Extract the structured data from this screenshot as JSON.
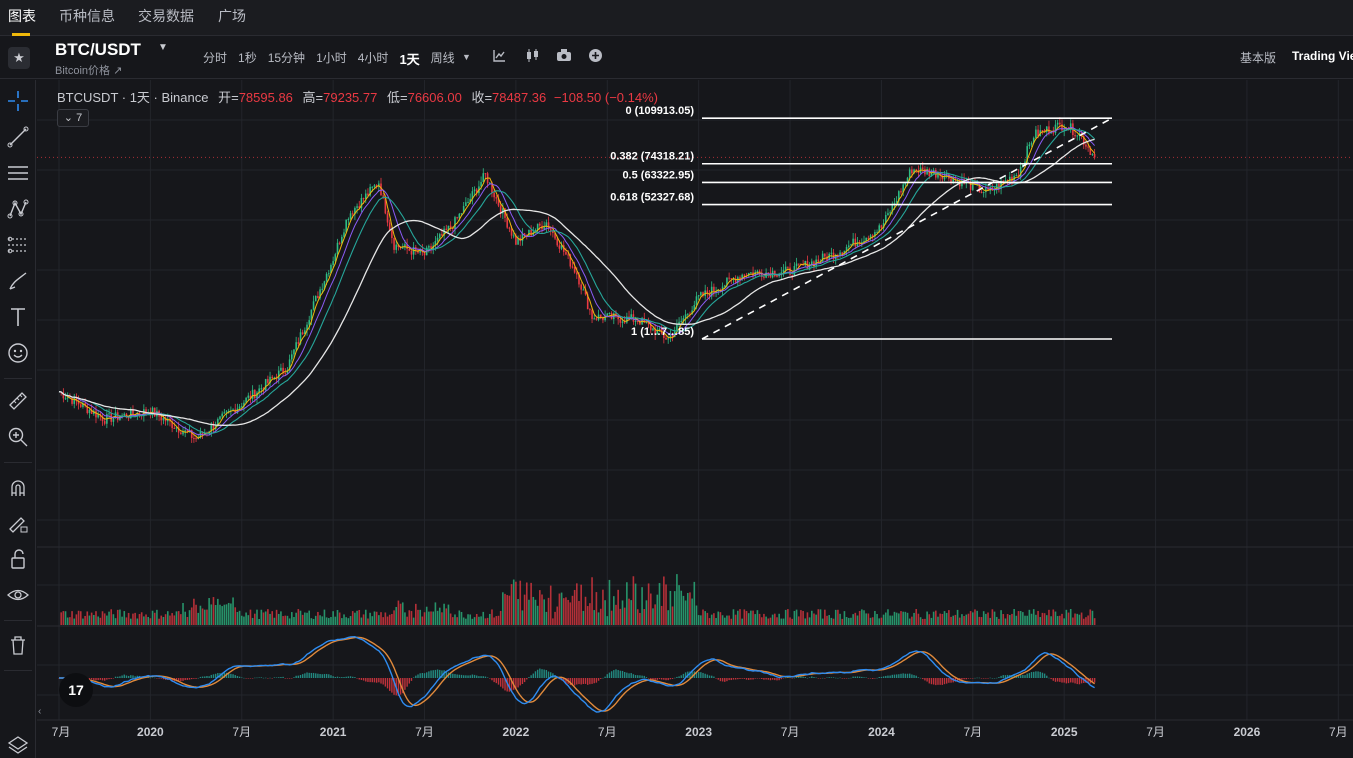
{
  "top_tabs": [
    "图表",
    "币种信息",
    "交易数据",
    "广场"
  ],
  "header": {
    "symbol": "BTC/USDT",
    "subname": "Bitcoin价格 ↗",
    "intervals": [
      "分时",
      "1秒",
      "15分钟",
      "1小时",
      "4小时",
      "1天",
      "周线"
    ],
    "active_interval": "1天",
    "view_basic": "基本版",
    "view_tv": "Trading View"
  },
  "legend": {
    "symbol_line": "BTCUSDT · 1天 · Binance",
    "open_label": "开=",
    "open": "78595.86",
    "high_label": "高=",
    "high": "79235.77",
    "low_label": "低=",
    "low": "76606.00",
    "close_label": "收=",
    "close": "78487.36",
    "change": "−108.50 (−0.14%)"
  },
  "indicator_toggle": "⌄ 7",
  "left_tools": [
    "crosshair-icon",
    "trendline-icon",
    "horizontal-lines-icon",
    "pattern-icon",
    "fib-icon",
    "brush-icon",
    "text-icon",
    "emoji-icon",
    "ruler-icon",
    "zoom-icon",
    "magnet-icon",
    "lock-drawing-icon",
    "lock-icon",
    "eye-icon",
    "trash-icon",
    "layers-icon"
  ],
  "colors": {
    "up": "#2ebd85",
    "down": "#ea3943",
    "background": "#16171b",
    "accent": "#f0b90b",
    "ma_fast": "#f0b90b",
    "ma_mid": "#8b5cf6",
    "ma_teal": "#26a69a",
    "ma_slow": "#e6e6e6",
    "macd_line": "#2f8cf0",
    "signal_line": "#e08a3c"
  },
  "chart_data": {
    "type": "line",
    "title": "BTCUSDT · 1天 · Binance",
    "x_ticks": [
      "7月",
      "2020",
      "7月",
      "2021",
      "7月",
      "2022",
      "7月",
      "2023",
      "7月",
      "2024",
      "7月",
      "2025",
      "7月",
      "2026",
      "7月"
    ],
    "x": [
      "2019-07",
      "2019-10",
      "2020-01",
      "2020-04",
      "2020-07",
      "2020-10",
      "2021-01",
      "2021-02",
      "2021-04",
      "2021-05",
      "2021-07",
      "2021-09",
      "2021-11",
      "2022-01",
      "2022-03",
      "2022-05",
      "2022-06",
      "2022-09",
      "2022-11",
      "2023-01",
      "2023-04",
      "2023-07",
      "2023-10",
      "2024-01",
      "2024-03",
      "2024-05",
      "2024-08",
      "2024-10",
      "2024-11",
      "2024-12",
      "2025-01",
      "2025-02",
      "2025-03"
    ],
    "series": [
      {
        "values": [
          10500,
          8300,
          8900,
          7000,
          9500,
          13000,
          33000,
          48000,
          63500,
          37000,
          34000,
          45000,
          67500,
          38000,
          45000,
          29000,
          20000,
          19500,
          16500,
          23500,
          29000,
          29500,
          34500,
          43000,
          71000,
          68000,
          58000,
          69000,
          95000,
          100000,
          104000,
          96000,
          78487.36
        ]
      }
    ],
    "fibonacci": [
      {
        "level": "0",
        "price": "109913.05"
      },
      {
        "level": "0.382",
        "price": "74318.21"
      },
      {
        "level": "0.5",
        "price": "63322.95"
      },
      {
        "level": "0.618",
        "price": "52327.68"
      },
      {
        "level": "1",
        "price": "1…7…85"
      }
    ],
    "log_scale": true,
    "grid": true,
    "panes": [
      "price",
      "volume",
      "macd"
    ]
  }
}
